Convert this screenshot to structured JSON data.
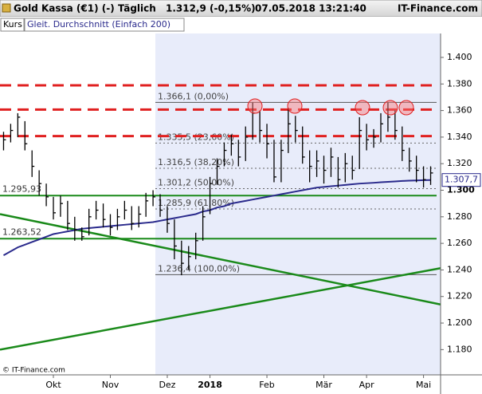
{
  "header": {
    "title": "Gold Kassa (€1) (-)",
    "interval": "Täglich",
    "quote": "1.312,9 (-0,15%)",
    "datetime": "07.05.2018 13:21:40",
    "brand": "IT-Finance.com"
  },
  "copyright": "© IT-Finance.com",
  "chart_data": {
    "type": "ohlc",
    "categories": [
      null,
      null,
      null,
      null,
      null,
      null,
      null,
      "Okt",
      null,
      null,
      null,
      null,
      null,
      null,
      null,
      "Nov",
      null,
      null,
      null,
      null,
      null,
      null,
      null,
      "Dez",
      null,
      null,
      null,
      null,
      null,
      "2018",
      null,
      null,
      null,
      null,
      null,
      null,
      null,
      "Feb",
      null,
      null,
      null,
      null,
      null,
      null,
      null,
      "Mär",
      null,
      null,
      null,
      null,
      null,
      "Apr",
      null,
      null,
      null,
      null,
      null,
      null,
      null,
      "Mai",
      null
    ],
    "ylim": [
      1.161,
      1.418
    ],
    "yticks": [
      {
        "value": 1.18,
        "label": "1.180"
      },
      {
        "value": 1.2,
        "label": "1.200"
      },
      {
        "value": 1.22,
        "label": "1.220"
      },
      {
        "value": 1.24,
        "label": "1.240"
      },
      {
        "value": 1.26,
        "label": "1.260"
      },
      {
        "value": 1.28,
        "label": "1.280"
      },
      {
        "value": 1.3,
        "label": "1.300"
      },
      {
        "value": 1.32,
        "label": "1.320"
      },
      {
        "value": 1.34,
        "label": "1.340"
      },
      {
        "value": 1.36,
        "label": "1.360"
      },
      {
        "value": 1.38,
        "label": "1.380"
      },
      {
        "value": 1.4,
        "label": "1.400"
      }
    ],
    "series": [
      {
        "name": "Kurs",
        "color": "#000000",
        "high": [
          1.344,
          1.35,
          1.358,
          1.352,
          1.33,
          1.315,
          1.305,
          1.295,
          1.296,
          1.292,
          1.28,
          1.272,
          1.286,
          1.292,
          1.29,
          1.282,
          1.286,
          1.292,
          1.288,
          1.288,
          1.298,
          1.3,
          1.297,
          1.288,
          1.278,
          1.262,
          1.258,
          1.268,
          1.288,
          1.31,
          1.324,
          1.336,
          1.342,
          1.338,
          1.348,
          1.366,
          1.36,
          1.35,
          1.338,
          1.338,
          1.362,
          1.356,
          1.348,
          1.33,
          1.33,
          1.326,
          1.332,
          1.325,
          1.328,
          1.326,
          1.355,
          1.35,
          1.346,
          1.358,
          1.366,
          1.36,
          1.348,
          1.332,
          1.326,
          1.318,
          1.318
        ],
        "low": [
          1.33,
          1.336,
          1.34,
          1.33,
          1.31,
          1.296,
          1.288,
          1.278,
          1.28,
          1.27,
          1.262,
          1.262,
          1.266,
          1.278,
          1.272,
          1.266,
          1.27,
          1.278,
          1.27,
          1.272,
          1.28,
          1.288,
          1.28,
          1.268,
          1.248,
          1.236,
          1.24,
          1.248,
          1.262,
          1.282,
          1.304,
          1.318,
          1.326,
          1.318,
          1.322,
          1.338,
          1.336,
          1.324,
          1.306,
          1.306,
          1.328,
          1.336,
          1.32,
          1.306,
          1.31,
          1.305,
          1.31,
          1.302,
          1.306,
          1.308,
          1.316,
          1.33,
          1.332,
          1.336,
          1.344,
          1.338,
          1.322,
          1.314,
          1.306,
          1.302,
          1.304
        ],
        "close": [
          1.338,
          1.345,
          1.355,
          1.335,
          1.318,
          1.305,
          1.295,
          1.283,
          1.29,
          1.275,
          1.27,
          1.265,
          1.28,
          1.285,
          1.278,
          1.272,
          1.28,
          1.285,
          1.275,
          1.282,
          1.292,
          1.295,
          1.285,
          1.275,
          1.258,
          1.245,
          1.25,
          1.262,
          1.28,
          1.305,
          1.318,
          1.33,
          1.335,
          1.325,
          1.34,
          1.358,
          1.345,
          1.335,
          1.31,
          1.33,
          1.35,
          1.345,
          1.325,
          1.318,
          1.322,
          1.315,
          1.325,
          1.308,
          1.32,
          1.315,
          1.345,
          1.338,
          1.34,
          1.35,
          1.355,
          1.345,
          1.33,
          1.322,
          1.315,
          1.308,
          1.313
        ]
      },
      {
        "name": "Gleit. Durchschnitt (Einfach 200)",
        "color": "#2a2a8c",
        "values": [
          1.251,
          1.254,
          1.257,
          1.259,
          1.261,
          1.263,
          1.265,
          1.267,
          1.268,
          1.269,
          1.27,
          1.271,
          1.2715,
          1.272,
          1.2725,
          1.273,
          1.2735,
          1.274,
          1.2745,
          1.275,
          1.2755,
          1.276,
          1.277,
          1.278,
          1.279,
          1.28,
          1.281,
          1.282,
          1.284,
          1.285,
          1.287,
          1.288,
          1.29,
          1.291,
          1.292,
          1.293,
          1.294,
          1.295,
          1.296,
          1.297,
          1.298,
          1.299,
          1.3,
          1.301,
          1.302,
          1.3025,
          1.303,
          1.3035,
          1.304,
          1.3045,
          1.305,
          1.3053,
          1.3056,
          1.306,
          1.3063,
          1.3066,
          1.307,
          1.3072,
          1.3074,
          1.3076,
          1.3077
        ],
        "last": {
          "value": 1.3077,
          "label": "1.307,7"
        }
      }
    ],
    "fib_levels": [
      {
        "value": 1.3661,
        "label": "1.366,1 (0,00%)"
      },
      {
        "value": 1.3355,
        "label": "1.335,5 (23,60%)"
      },
      {
        "value": 1.3165,
        "label": "1.316,5 (38,20%)"
      },
      {
        "value": 1.3012,
        "label": "1.301,2 (50,00%)"
      },
      {
        "value": 1.2859,
        "label": "1.285,9 (61,80%)"
      },
      {
        "value": 1.2364,
        "label": "1.236,4 (100,00%)"
      }
    ],
    "resistance_lines": {
      "color": "#e02020",
      "values": [
        1.379,
        1.3607,
        1.3408
      ]
    },
    "support_lines": {
      "color": "#1a8a1a",
      "levels": [
        {
          "value": 1.29593,
          "label": "1.295,93"
        },
        {
          "value": 1.26352,
          "label": "1.263,52"
        }
      ]
    },
    "trendlines": {
      "color": "#1a8a1a",
      "lines": [
        {
          "start": 1.282,
          "end": 1.214
        },
        {
          "start": 1.18,
          "end": 1.2413
        }
      ]
    }
  }
}
